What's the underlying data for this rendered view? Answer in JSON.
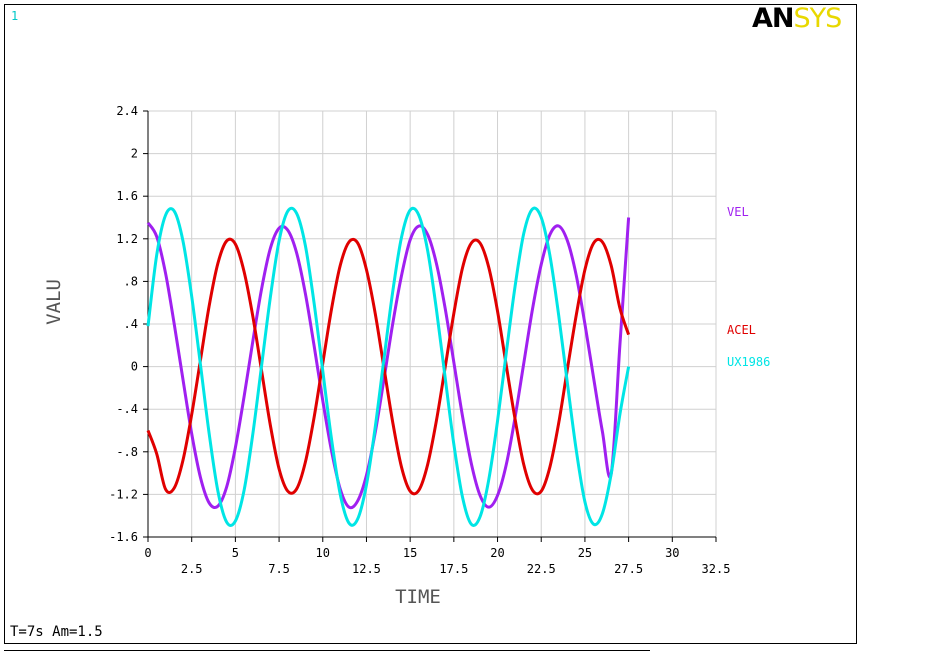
{
  "window_number": "1",
  "logo": {
    "part1": "AN",
    "part2": "SYS"
  },
  "footer": "T=7s Am=1.5",
  "colors": {
    "vel": "#a020f0",
    "acel": "#e00000",
    "ux": "#00e5e5",
    "grid": "#d0d0d0",
    "window_number": "#00c8c8",
    "logo_sys": "#e8d800"
  },
  "chart_data": {
    "type": "line",
    "title": "",
    "xlabel": "TIME",
    "ylabel": "VALU",
    "xlim": [
      0,
      32.5
    ],
    "ylim": [
      -1.6,
      2.4
    ],
    "grid": true,
    "legend": "right",
    "x_ticks_major": [
      "0",
      "5",
      "10",
      "15",
      "20",
      "25",
      "30"
    ],
    "x_ticks_minor": [
      "2.5",
      "7.5",
      "12.5",
      "17.5",
      "22.5",
      "27.5",
      "32.5"
    ],
    "y_ticks": [
      "-1.6",
      "-1.2",
      "-.8",
      "-.4",
      "0",
      ".4",
      ".8",
      "1.2",
      "1.6",
      "2",
      "2.4"
    ],
    "x": [
      0,
      0.5,
      1,
      1.5,
      2,
      2.5,
      3,
      3.5,
      4,
      4.5,
      5,
      5.5,
      6,
      6.5,
      7,
      7.5,
      8,
      8.5,
      9,
      9.5,
      10,
      10.5,
      11,
      11.5,
      12,
      12.5,
      13,
      13.5,
      14,
      14.5,
      15,
      15.5,
      16,
      16.5,
      17,
      17.5,
      18,
      18.5,
      19,
      19.5,
      20,
      20.5,
      21,
      21.5,
      22,
      22.5,
      23,
      23.5,
      24,
      24.5,
      25,
      25.5,
      26,
      26.5,
      27,
      27.5
    ],
    "series": [
      {
        "name": "VEL",
        "color": "#a020f0",
        "values": [
          1.35,
          1.22,
          0.88,
          0.4,
          -0.12,
          -0.63,
          -1.04,
          -1.28,
          -1.31,
          -1.13,
          -0.76,
          -0.28,
          0.24,
          0.73,
          1.11,
          1.3,
          1.28,
          1.07,
          0.69,
          0.2,
          -0.32,
          -0.79,
          -1.15,
          -1.32,
          -1.26,
          -1.02,
          -0.62,
          -0.12,
          0.4,
          0.85,
          1.19,
          1.32,
          1.24,
          0.97,
          0.55,
          0.04,
          -0.47,
          -0.91,
          -1.21,
          -1.32,
          -1.21,
          -0.92,
          -0.48,
          0.03,
          0.54,
          0.96,
          1.24,
          1.32,
          1.18,
          0.86,
          0.4,
          -0.11,
          -0.61,
          -1.01,
          0.2,
          1.4
        ]
      },
      {
        "name": "ACEL",
        "color": "#e00000",
        "values": [
          -0.6,
          -0.82,
          -1.15,
          -1.14,
          -0.88,
          -0.45,
          0.06,
          0.57,
          0.97,
          1.18,
          1.15,
          0.89,
          0.47,
          -0.04,
          -0.55,
          -0.96,
          -1.17,
          -1.15,
          -0.9,
          -0.48,
          0.03,
          0.54,
          0.95,
          1.17,
          1.16,
          0.91,
          0.5,
          -0.01,
          -0.52,
          -0.94,
          -1.17,
          -1.16,
          -0.92,
          -0.51,
          -0.01,
          0.5,
          0.93,
          1.16,
          1.16,
          0.93,
          0.52,
          0.01,
          -0.49,
          -0.92,
          -1.16,
          -1.17,
          -0.94,
          -0.53,
          -0.02,
          0.48,
          0.91,
          1.16,
          1.17,
          0.95,
          0.55,
          0.3
        ]
      },
      {
        "name": "UX1986",
        "color": "#00e5e5",
        "values": [
          0.38,
          1.05,
          1.42,
          1.46,
          1.18,
          0.66,
          0.02,
          -0.63,
          -1.17,
          -1.46,
          -1.45,
          -1.16,
          -0.63,
          0.01,
          0.65,
          1.18,
          1.46,
          1.44,
          1.14,
          0.6,
          -0.04,
          -0.68,
          -1.2,
          -1.47,
          -1.43,
          -1.11,
          -0.57,
          0.07,
          0.7,
          1.21,
          1.47,
          1.42,
          1.09,
          0.54,
          -0.1,
          -0.73,
          -1.23,
          -1.48,
          -1.41,
          -1.06,
          -0.51,
          0.13,
          0.75,
          1.25,
          1.48,
          1.4,
          1.04,
          0.48,
          -0.16,
          -0.78,
          -1.27,
          -1.48,
          -1.38,
          -1.01,
          -0.45,
          0.0
        ]
      }
    ]
  }
}
